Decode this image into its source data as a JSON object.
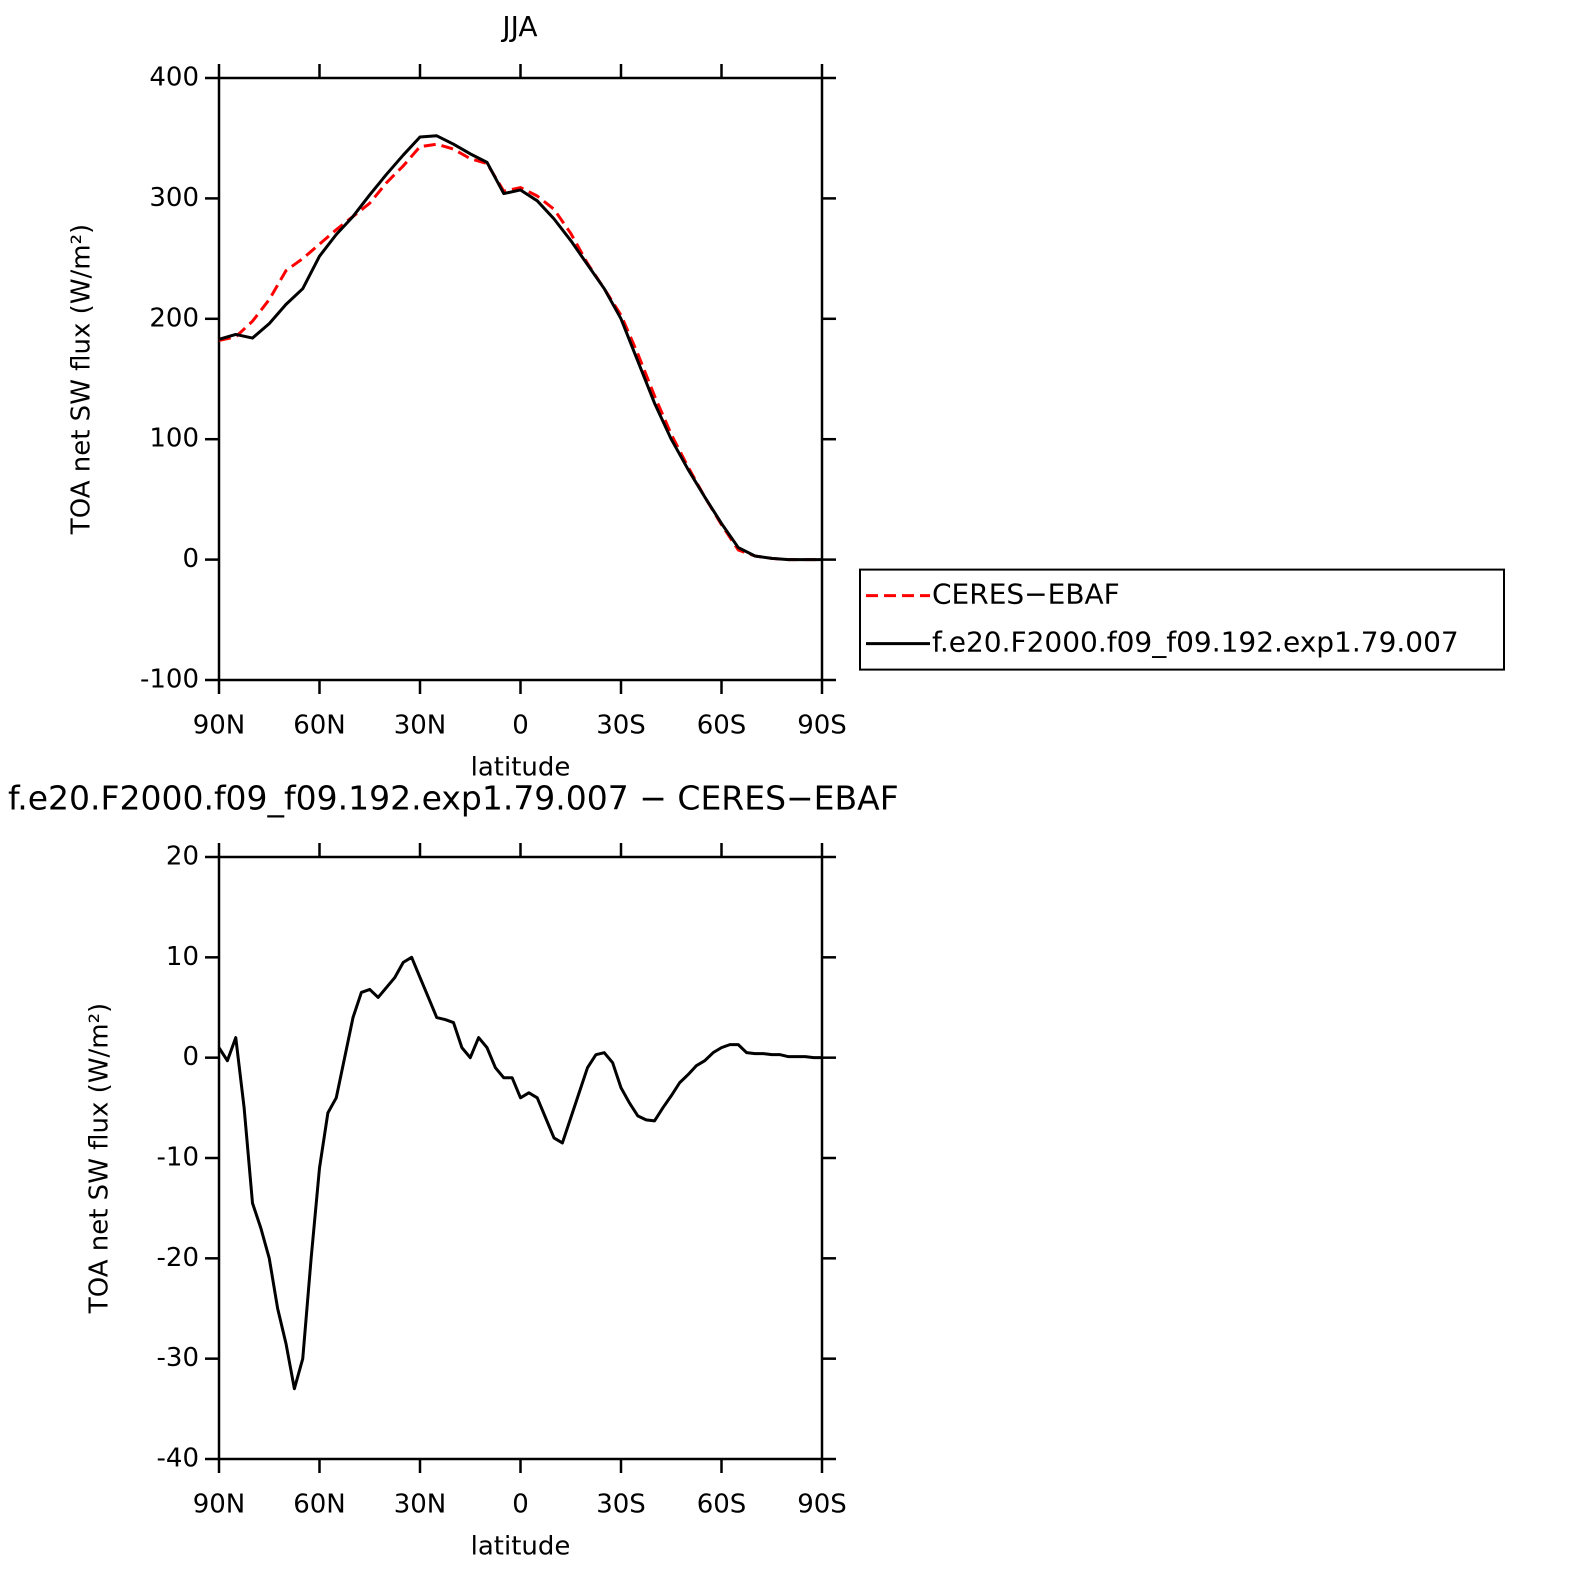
{
  "chart_data": [
    {
      "type": "line",
      "title": "JJA",
      "xlabel": "latitude",
      "ylabel": "TOA net SW flux (W/m²)",
      "x": [
        90,
        85,
        80,
        75,
        70,
        65,
        60,
        55,
        50,
        45,
        40,
        35,
        30,
        25,
        20,
        15,
        10,
        5,
        0,
        -5,
        -10,
        -15,
        -20,
        -25,
        -30,
        -35,
        -40,
        -45,
        -50,
        -55,
        -60,
        -65,
        -70,
        -75,
        -80,
        -85,
        -90
      ],
      "series": [
        {
          "name": "CERES−EBAF",
          "color": "#ff0000",
          "dash": true,
          "values": [
            182,
            185,
            198,
            216,
            240,
            250,
            262,
            274,
            285,
            296,
            313,
            327,
            343,
            345,
            341,
            333,
            329,
            306,
            309,
            302,
            291,
            271,
            246,
            225,
            203,
            171,
            136,
            104,
            77,
            52,
            29,
            8,
            3,
            1,
            0,
            0,
            0
          ]
        },
        {
          "name": "f.e20.F2000.f09_f09.192.exp1.79.007",
          "color": "#000000",
          "dash": false,
          "values": [
            183,
            187,
            184,
            196,
            212,
            225,
            252,
            270,
            285,
            303,
            320,
            336,
            351,
            352,
            345,
            337,
            330,
            304,
            307,
            298,
            283,
            265,
            245,
            225,
            200,
            165,
            130,
            100,
            75,
            52,
            30,
            10,
            3,
            1,
            0,
            0,
            0
          ]
        }
      ],
      "xlim": [
        90,
        -90
      ],
      "xticks": [
        {
          "value": 90,
          "label": "90N"
        },
        {
          "value": 60,
          "label": "60N"
        },
        {
          "value": 30,
          "label": "30N"
        },
        0,
        {
          "value": -30,
          "label": "30S"
        },
        {
          "value": -60,
          "label": "60S"
        },
        {
          "value": -90,
          "label": "90S"
        }
      ],
      "ylim": [
        -100,
        400
      ],
      "yticks": [
        -100,
        0,
        100,
        200,
        300,
        400
      ],
      "legend": "right"
    },
    {
      "type": "line",
      "title": "f.e20.F2000.f09_f09.192.exp1.79.007 − CERES−EBAF",
      "xlabel": "latitude",
      "ylabel": "TOA net SW flux (W/m²)",
      "x": [
        90,
        87.5,
        85,
        82.5,
        80,
        77.5,
        75,
        72.5,
        70,
        67.5,
        65,
        62.5,
        60,
        57.5,
        55,
        52.5,
        50,
        47.5,
        45,
        42.5,
        40,
        37.5,
        35,
        32.5,
        30,
        27.5,
        25,
        22.5,
        20,
        17.5,
        15,
        12.5,
        10,
        7.5,
        5,
        2.5,
        0,
        -2.5,
        -5,
        -7.5,
        -10,
        -12.5,
        -15,
        -17.5,
        -20,
        -22.5,
        -25,
        -27.5,
        -30,
        -32.5,
        -35,
        -37.5,
        -40,
        -42.5,
        -45,
        -47.5,
        -50,
        -52.5,
        -55,
        -57.5,
        -60,
        -62.5,
        -65,
        -67.5,
        -70,
        -72.5,
        -75,
        -77.5,
        -80,
        -82.5,
        -85,
        -87.5,
        -90
      ],
      "series": [
        {
          "color": "#000000",
          "dash": false,
          "values": [
            1,
            -0.3,
            2,
            -5,
            -14.5,
            -17,
            -20,
            -25,
            -28.5,
            -33,
            -30,
            -20,
            -11,
            -5.5,
            -4,
            0,
            4,
            6.5,
            6.8,
            6,
            7,
            8,
            9.5,
            10,
            8,
            6,
            4,
            3.8,
            3.5,
            1,
            0,
            2,
            1,
            -1,
            -2,
            -2,
            -4,
            -3.5,
            -4,
            -6,
            -8,
            -8.5,
            -6,
            -3.5,
            -1,
            0.3,
            0.5,
            -0.5,
            -3,
            -4.5,
            -5.8,
            -6.2,
            -6.3,
            -5,
            -3.8,
            -2.5,
            -1.7,
            -0.8,
            -0.3,
            0.5,
            1,
            1.3,
            1.3,
            0.5,
            0.4,
            0.4,
            0.3,
            0.3,
            0.1,
            0.1,
            0.1,
            0,
            0
          ]
        }
      ],
      "xlim": [
        90,
        -90
      ],
      "xticks": [
        {
          "value": 90,
          "label": "90N"
        },
        {
          "value": 60,
          "label": "60N"
        },
        {
          "value": 30,
          "label": "30N"
        },
        0,
        {
          "value": -30,
          "label": "30S"
        },
        {
          "value": -60,
          "label": "60S"
        },
        {
          "value": -90,
          "label": "90S"
        }
      ],
      "ylim": [
        -40,
        20
      ],
      "yticks": [
        -40,
        -30,
        -20,
        -10,
        0,
        10,
        20
      ]
    }
  ]
}
